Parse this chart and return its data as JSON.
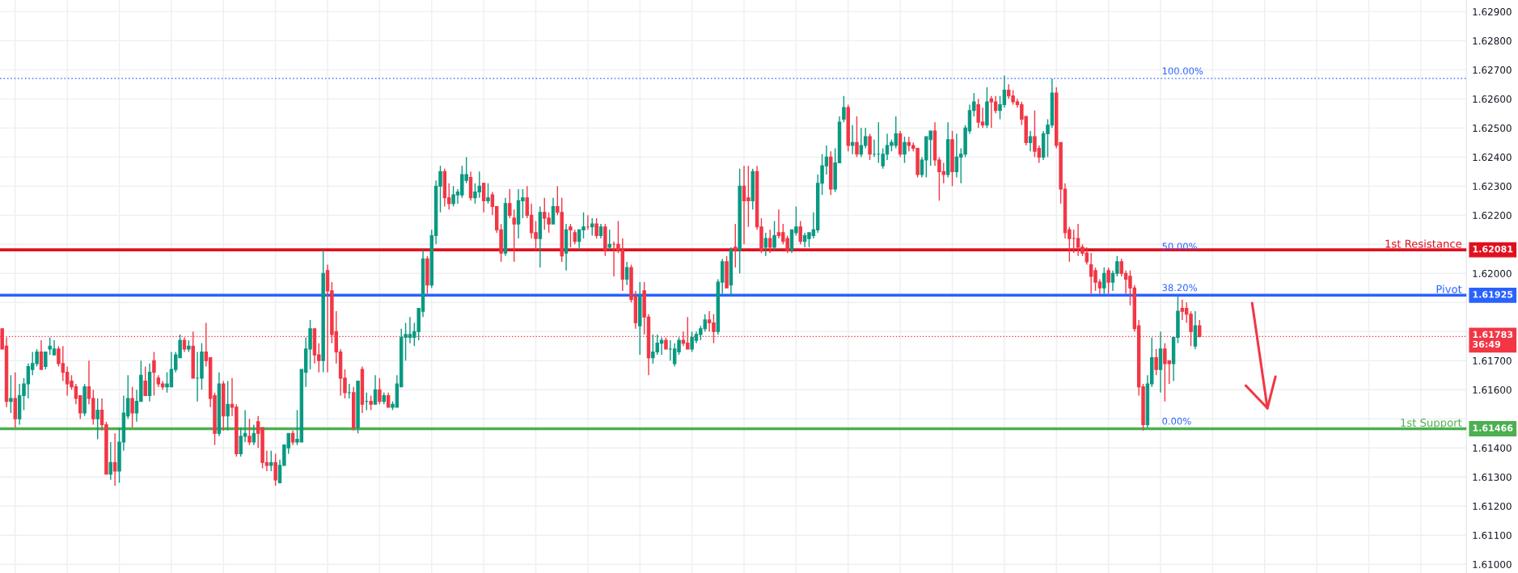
{
  "chart_data": {
    "type": "candlestick",
    "categories": [
      null,
      null,
      null,
      null,
      null,
      null,
      null,
      null,
      null,
      null,
      null,
      null,
      null,
      null,
      null,
      null,
      null,
      null,
      null,
      null,
      null,
      null,
      null,
      null,
      null,
      null,
      null,
      null,
      null,
      null,
      null,
      null,
      null,
      null,
      null,
      null,
      null,
      null,
      null,
      null,
      null,
      null,
      null,
      null,
      null,
      null,
      null,
      null,
      null,
      null,
      null,
      null,
      null,
      null,
      null,
      null,
      null,
      null,
      null,
      null,
      null,
      null,
      null,
      null,
      null,
      null,
      null,
      null,
      null,
      null,
      null,
      null,
      null,
      null,
      null,
      null,
      null,
      null,
      null,
      null,
      null,
      null,
      null,
      null,
      null,
      null,
      null,
      null,
      null,
      null,
      null,
      null,
      null,
      null,
      null,
      null,
      null,
      null,
      null,
      null,
      null,
      null,
      null,
      null,
      null,
      null,
      null,
      null,
      null,
      null,
      null,
      null,
      null,
      null,
      null,
      null,
      null,
      null,
      null,
      null,
      null,
      null,
      null,
      null,
      null,
      null,
      null,
      null,
      null,
      null,
      null,
      null,
      null,
      null,
      null,
      null,
      null,
      null,
      null,
      null,
      null,
      null,
      null,
      null,
      null,
      null,
      null,
      null,
      null,
      null,
      null,
      null,
      null,
      null,
      null,
      null,
      null,
      null,
      null,
      null,
      null,
      null,
      null,
      null,
      null,
      null,
      null,
      null,
      null,
      null,
      null,
      null,
      null,
      null,
      null,
      null,
      null,
      null,
      null,
      null,
      null,
      null,
      null,
      null,
      null,
      null,
      null,
      null,
      null,
      null,
      null,
      null,
      null,
      null,
      null,
      null,
      null,
      null,
      null,
      null,
      null,
      null,
      null,
      null,
      null,
      null,
      null,
      null,
      null,
      null,
      null,
      null,
      null,
      null,
      null,
      null,
      null,
      null,
      null,
      null,
      null,
      null,
      null,
      null,
      null,
      null,
      null,
      null,
      null,
      null,
      null,
      null,
      null,
      null,
      null,
      null,
      null,
      null,
      null,
      null,
      null,
      null,
      null,
      null,
      null,
      null,
      null,
      null,
      null,
      null,
      null,
      null,
      null,
      null,
      null,
      null,
      null,
      null,
      null,
      null,
      null,
      null,
      null,
      null,
      null,
      null,
      null,
      null,
      null,
      null,
      null,
      null,
      null,
      null,
      null,
      null,
      null,
      null,
      null,
      null,
      null,
      null,
      null,
      null,
      null,
      null,
      null,
      null,
      null,
      null,
      null,
      null,
      null,
      null,
      null,
      null,
      null,
      null,
      null,
      null,
      null,
      null,
      null,
      null,
      null,
      null,
      null,
      null,
      null,
      null,
      null,
      null,
      null,
      null,
      null,
      null,
      null,
      null,
      null,
      null,
      null,
      null,
      null,
      null,
      null,
      null,
      null,
      null,
      null,
      null,
      null,
      null,
      null,
      null,
      null,
      null,
      null,
      null
    ],
    "ohlc": [
      [
        1.6181,
        1.6181,
        1.6174,
        1.6174
      ],
      [
        1.6175,
        1.6178,
        1.6154,
        1.6156
      ],
      [
        1.6156,
        1.6165,
        1.6152,
        1.6157
      ],
      [
        1.6157,
        1.6166,
        1.6147,
        1.615
      ],
      [
        1.615,
        1.6162,
        1.6148,
        1.6158
      ],
      [
        1.6158,
        1.6164,
        1.6153,
        1.6162
      ],
      [
        1.6162,
        1.6169,
        1.6157,
        1.6168
      ],
      [
        1.6167,
        1.6173,
        1.6165,
        1.6169
      ],
      [
        1.6169,
        1.6174,
        1.6168,
        1.6173
      ],
      [
        1.6173,
        1.6177,
        1.6167,
        1.6167
      ],
      [
        1.6168,
        1.6173,
        1.6167,
        1.6173
      ],
      [
        1.6174,
        1.6178,
        1.6172,
        1.6175
      ],
      [
        1.6172,
        1.6177,
        1.6172,
        1.6174
      ],
      [
        1.6174,
        1.6175,
        1.6168,
        1.6169
      ],
      [
        1.6169,
        1.6175,
        1.6163,
        1.6166
      ],
      [
        1.6166,
        1.6168,
        1.6158,
        1.6162
      ],
      [
        1.6163,
        1.6165,
        1.616,
        1.6161
      ],
      [
        1.6161,
        1.6162,
        1.6155,
        1.6157
      ],
      [
        1.6158,
        1.6158,
        1.615,
        1.6152
      ],
      [
        1.6152,
        1.6162,
        1.6151,
        1.6161
      ],
      [
        1.6161,
        1.617,
        1.6155,
        1.6157
      ],
      [
        1.6157,
        1.616,
        1.6148,
        1.615
      ],
      [
        1.615,
        1.6157,
        1.6143,
        1.6153
      ],
      [
        1.6153,
        1.6157,
        1.6146,
        1.6148
      ],
      [
        1.6148,
        1.6149,
        1.6131,
        1.6131
      ],
      [
        1.6131,
        1.6142,
        1.6129,
        1.6135
      ],
      [
        1.6135,
        1.6145,
        1.6127,
        1.6132
      ],
      [
        1.6132,
        1.6147,
        1.6128,
        1.6142
      ],
      [
        1.6142,
        1.6158,
        1.6139,
        1.6152
      ],
      [
        1.6151,
        1.6165,
        1.615,
        1.6157
      ],
      [
        1.6157,
        1.6161,
        1.6147,
        1.6152
      ],
      [
        1.6152,
        1.616,
        1.6149,
        1.6156
      ],
      [
        1.6156,
        1.617,
        1.6156,
        1.6165
      ],
      [
        1.6163,
        1.6168,
        1.6158,
        1.6158
      ],
      [
        1.6158,
        1.6169,
        1.6156,
        1.6166
      ],
      [
        1.617,
        1.6173,
        1.6158,
        1.6166
      ],
      [
        1.6164,
        1.6165,
        1.6161,
        1.6162
      ],
      [
        1.6162,
        1.6163,
        1.616,
        1.6161
      ],
      [
        1.6161,
        1.6166,
        1.6159,
        1.6162
      ],
      [
        1.6161,
        1.6173,
        1.6161,
        1.6167
      ],
      [
        1.6167,
        1.6173,
        1.6166,
        1.6172
      ],
      [
        1.6171,
        1.6179,
        1.6171,
        1.6177
      ],
      [
        1.6177,
        1.6178,
        1.6173,
        1.6174
      ],
      [
        1.6174,
        1.6177,
        1.6173,
        1.6175
      ],
      [
        1.6175,
        1.618,
        1.6164,
        1.6164
      ],
      [
        1.6164,
        1.6173,
        1.6156,
        1.6164
      ],
      [
        1.6164,
        1.6176,
        1.616,
        1.6173
      ],
      [
        1.6173,
        1.6183,
        1.6168,
        1.617
      ],
      [
        1.6171,
        1.6171,
        1.6154,
        1.6157
      ],
      [
        1.6158,
        1.6159,
        1.6141,
        1.6145
      ],
      [
        1.6145,
        1.6166,
        1.6144,
        1.6162
      ],
      [
        1.6162,
        1.6163,
        1.6146,
        1.6151
      ],
      [
        1.6151,
        1.6163,
        1.6146,
        1.6155
      ],
      [
        1.6155,
        1.6164,
        1.6151,
        1.6154
      ],
      [
        1.6154,
        1.6155,
        1.6137,
        1.6138
      ],
      [
        1.6138,
        1.6147,
        1.6137,
        1.6144
      ],
      [
        1.6144,
        1.6153,
        1.6142,
        1.6145
      ],
      [
        1.6144,
        1.615,
        1.6141,
        1.6142
      ],
      [
        1.6142,
        1.6148,
        1.6141,
        1.6145
      ],
      [
        1.6149,
        1.6151,
        1.614,
        1.6145
      ],
      [
        1.6147,
        1.6147,
        1.6133,
        1.6135
      ],
      [
        1.6135,
        1.6139,
        1.6132,
        1.6134
      ],
      [
        1.6134,
        1.6139,
        1.6132,
        1.6135
      ],
      [
        1.6135,
        1.6138,
        1.6127,
        1.6129
      ],
      [
        1.6128,
        1.6136,
        1.6128,
        1.6134
      ],
      [
        1.6134,
        1.6141,
        1.6134,
        1.6141
      ],
      [
        1.614,
        1.6145,
        1.6138,
        1.6145
      ],
      [
        1.6145,
        1.6146,
        1.6141,
        1.6142
      ],
      [
        1.6142,
        1.6153,
        1.6141,
        1.6143
      ],
      [
        1.6142,
        1.6167,
        1.6142,
        1.6167
      ],
      [
        1.6166,
        1.6178,
        1.6161,
        1.6174
      ],
      [
        1.6174,
        1.6184,
        1.6167,
        1.6181
      ],
      [
        1.6181,
        1.6181,
        1.6169,
        1.6172
      ],
      [
        1.6172,
        1.6176,
        1.6166,
        1.617
      ],
      [
        1.617,
        1.6208,
        1.6166,
        1.62
      ],
      [
        1.6201,
        1.6203,
        1.6166,
        1.6194
      ],
      [
        1.6194,
        1.6197,
        1.6176,
        1.6179
      ],
      [
        1.618,
        1.6187,
        1.6169,
        1.6173
      ],
      [
        1.6173,
        1.6174,
        1.6158,
        1.6164
      ],
      [
        1.6164,
        1.6167,
        1.6157,
        1.6159
      ],
      [
        1.6159,
        1.6162,
        1.6157,
        1.6159
      ],
      [
        1.6159,
        1.6161,
        1.6146,
        1.6147
      ],
      [
        1.6147,
        1.6163,
        1.6145,
        1.6163
      ],
      [
        1.6167,
        1.6168,
        1.6152,
        1.6155
      ],
      [
        1.6156,
        1.6159,
        1.6153,
        1.6156
      ],
      [
        1.6156,
        1.6158,
        1.6153,
        1.6155
      ],
      [
        1.6155,
        1.6165,
        1.6155,
        1.616
      ],
      [
        1.616,
        1.6164,
        1.6155,
        1.6156
      ],
      [
        1.6156,
        1.6159,
        1.6155,
        1.6158
      ],
      [
        1.6158,
        1.6159,
        1.6154,
        1.6154
      ],
      [
        1.6154,
        1.6156,
        1.6153,
        1.6155
      ],
      [
        1.6154,
        1.6165,
        1.6154,
        1.6162
      ],
      [
        1.6161,
        1.6181,
        1.6161,
        1.6178
      ],
      [
        1.6178,
        1.6183,
        1.617,
        1.6179
      ],
      [
        1.6178,
        1.6185,
        1.6176,
        1.6179
      ],
      [
        1.6178,
        1.6183,
        1.6175,
        1.618
      ],
      [
        1.618,
        1.6188,
        1.6177,
        1.6188
      ],
      [
        1.6187,
        1.6208,
        1.6185,
        1.6205
      ],
      [
        1.6205,
        1.6206,
        1.6193,
        1.6196
      ],
      [
        1.6196,
        1.6215,
        1.6195,
        1.6213
      ],
      [
        1.6213,
        1.6232,
        1.621,
        1.623
      ],
      [
        1.623,
        1.6237,
        1.6221,
        1.6235
      ],
      [
        1.6235,
        1.6236,
        1.6223,
        1.6226
      ],
      [
        1.6226,
        1.6231,
        1.6222,
        1.6224
      ],
      [
        1.6224,
        1.623,
        1.6223,
        1.6227
      ],
      [
        1.6227,
        1.6229,
        1.6224,
        1.6228
      ],
      [
        1.6227,
        1.6237,
        1.6226,
        1.6234
      ],
      [
        1.6232,
        1.624,
        1.6231,
        1.6234
      ],
      [
        1.6233,
        1.6235,
        1.6225,
        1.6226
      ],
      [
        1.6226,
        1.6231,
        1.6224,
        1.6228
      ],
      [
        1.6228,
        1.6235,
        1.6226,
        1.623
      ],
      [
        1.6231,
        1.6231,
        1.6221,
        1.6225
      ],
      [
        1.6225,
        1.6231,
        1.6224,
        1.6226
      ],
      [
        1.6227,
        1.6228,
        1.622,
        1.6223
      ],
      [
        1.6223,
        1.6223,
        1.6214,
        1.6215
      ],
      [
        1.6215,
        1.6217,
        1.6204,
        1.6207
      ],
      [
        1.6207,
        1.6226,
        1.6206,
        1.6224
      ],
      [
        1.6224,
        1.6229,
        1.6219,
        1.622
      ],
      [
        1.6219,
        1.6222,
        1.6204,
        1.6217
      ],
      [
        1.6217,
        1.6229,
        1.6212,
        1.6225
      ],
      [
        1.6225,
        1.6229,
        1.6219,
        1.6226
      ],
      [
        1.6226,
        1.623,
        1.6219,
        1.622
      ],
      [
        1.622,
        1.6224,
        1.6212,
        1.6214
      ],
      [
        1.6214,
        1.6218,
        1.6208,
        1.6212
      ],
      [
        1.6212,
        1.6223,
        1.6202,
        1.6221
      ],
      [
        1.6221,
        1.6226,
        1.6215,
        1.6219
      ],
      [
        1.6219,
        1.6221,
        1.6214,
        1.6217
      ],
      [
        1.6217,
        1.6226,
        1.6217,
        1.6223
      ],
      [
        1.6223,
        1.623,
        1.622,
        1.6221
      ],
      [
        1.6221,
        1.6226,
        1.6204,
        1.6206
      ],
      [
        1.6207,
        1.6217,
        1.6201,
        1.6215
      ],
      [
        1.6216,
        1.6217,
        1.6209,
        1.6215
      ],
      [
        1.6214,
        1.6215,
        1.621,
        1.6211
      ],
      [
        1.6211,
        1.6215,
        1.6208,
        1.6215
      ],
      [
        1.6215,
        1.6221,
        1.6212,
        1.6216
      ],
      [
        1.6216,
        1.622,
        1.6215,
        1.6216
      ],
      [
        1.6216,
        1.6219,
        1.6213,
        1.6217
      ],
      [
        1.6217,
        1.6219,
        1.6212,
        1.6213
      ],
      [
        1.6213,
        1.6217,
        1.6212,
        1.6216
      ],
      [
        1.6216,
        1.6217,
        1.6206,
        1.6208
      ],
      [
        1.6209,
        1.6215,
        1.6208,
        1.621
      ],
      [
        1.621,
        1.6211,
        1.6199,
        1.621
      ],
      [
        1.621,
        1.6218,
        1.6207,
        1.6208
      ],
      [
        1.6208,
        1.6212,
        1.6194,
        1.6198
      ],
      [
        1.6198,
        1.6204,
        1.6196,
        1.6202
      ],
      [
        1.6202,
        1.6203,
        1.619,
        1.6191
      ],
      [
        1.6192,
        1.6194,
        1.6181,
        1.6183
      ],
      [
        1.6182,
        1.6197,
        1.6172,
        1.6192
      ],
      [
        1.6194,
        1.6197,
        1.6179,
        1.6185
      ],
      [
        1.6185,
        1.6186,
        1.6165,
        1.6171
      ],
      [
        1.6171,
        1.6179,
        1.6169,
        1.6173
      ],
      [
        1.6173,
        1.6179,
        1.6172,
        1.6176
      ],
      [
        1.6176,
        1.6178,
        1.6172,
        1.6177
      ],
      [
        1.6177,
        1.6178,
        1.6174,
        1.6174
      ],
      [
        1.6174,
        1.6177,
        1.617,
        1.6174
      ],
      [
        1.6169,
        1.6176,
        1.6168,
        1.6174
      ],
      [
        1.6173,
        1.6178,
        1.6172,
        1.6177
      ],
      [
        1.6177,
        1.618,
        1.6175,
        1.6176
      ],
      [
        1.6176,
        1.6185,
        1.6174,
        1.6174
      ],
      [
        1.6174,
        1.618,
        1.6173,
        1.6178
      ],
      [
        1.6177,
        1.618,
        1.6176,
        1.6179
      ],
      [
        1.6179,
        1.6182,
        1.6177,
        1.6181
      ],
      [
        1.6181,
        1.6186,
        1.618,
        1.6184
      ],
      [
        1.6184,
        1.6187,
        1.618,
        1.6183
      ],
      [
        1.6183,
        1.6186,
        1.6176,
        1.618
      ],
      [
        1.618,
        1.6198,
        1.6179,
        1.6197
      ],
      [
        1.6197,
        1.6205,
        1.6193,
        1.6204
      ],
      [
        1.6204,
        1.6206,
        1.6195,
        1.6195
      ],
      [
        1.6196,
        1.6209,
        1.6192,
        1.6208
      ],
      [
        1.6209,
        1.6217,
        1.6202,
        1.6208
      ],
      [
        1.6208,
        1.6236,
        1.62,
        1.623
      ],
      [
        1.623,
        1.6237,
        1.621,
        1.6225
      ],
      [
        1.6226,
        1.6237,
        1.6216,
        1.6225
      ],
      [
        1.6225,
        1.6236,
        1.6222,
        1.6235
      ],
      [
        1.6235,
        1.6237,
        1.6215,
        1.6216
      ],
      [
        1.6216,
        1.6219,
        1.6207,
        1.6208
      ],
      [
        1.6209,
        1.6214,
        1.6206,
        1.6212
      ],
      [
        1.6212,
        1.6215,
        1.6207,
        1.6209
      ],
      [
        1.6209,
        1.6218,
        1.6208,
        1.6213
      ],
      [
        1.6214,
        1.6222,
        1.6212,
        1.6213
      ],
      [
        1.6214,
        1.6217,
        1.621,
        1.6211
      ],
      [
        1.6212,
        1.6213,
        1.6207,
        1.6208
      ],
      [
        1.6208,
        1.6215,
        1.6207,
        1.6215
      ],
      [
        1.6214,
        1.6223,
        1.6213,
        1.6216
      ],
      [
        1.6216,
        1.6218,
        1.621,
        1.6211
      ],
      [
        1.6211,
        1.6214,
        1.6209,
        1.6213
      ],
      [
        1.6212,
        1.6214,
        1.6209,
        1.6214
      ],
      [
        1.6213,
        1.6221,
        1.6212,
        1.6215
      ],
      [
        1.6215,
        1.6234,
        1.6214,
        1.6231
      ],
      [
        1.6231,
        1.6241,
        1.6227,
        1.6237
      ],
      [
        1.6237,
        1.6244,
        1.6234,
        1.624
      ],
      [
        1.624,
        1.6242,
        1.6227,
        1.6229
      ],
      [
        1.6229,
        1.6243,
        1.6228,
        1.6238
      ],
      [
        1.6238,
        1.6254,
        1.6238,
        1.6252
      ],
      [
        1.6253,
        1.6261,
        1.6252,
        1.6257
      ],
      [
        1.6257,
        1.6258,
        1.6242,
        1.6244
      ],
      [
        1.6244,
        1.6251,
        1.6241,
        1.6245
      ],
      [
        1.6245,
        1.6254,
        1.624,
        1.6241
      ],
      [
        1.6241,
        1.625,
        1.624,
        1.6244
      ],
      [
        1.6244,
        1.625,
        1.6243,
        1.6247
      ],
      [
        1.6247,
        1.6248,
        1.6239,
        1.6241
      ],
      [
        1.6241,
        1.6246,
        1.624,
        1.6241
      ],
      [
        1.6241,
        1.6252,
        1.6238,
        1.6241
      ],
      [
        1.6237,
        1.6243,
        1.6236,
        1.6241
      ],
      [
        1.6241,
        1.6248,
        1.6239,
        1.6244
      ],
      [
        1.6244,
        1.6246,
        1.6242,
        1.6245
      ],
      [
        1.6244,
        1.6254,
        1.6243,
        1.6248
      ],
      [
        1.6248,
        1.6249,
        1.624,
        1.6241
      ],
      [
        1.6241,
        1.6247,
        1.6238,
        1.6245
      ],
      [
        1.6245,
        1.6247,
        1.6242,
        1.6244
      ],
      [
        1.6244,
        1.6245,
        1.6242,
        1.6243
      ],
      [
        1.6243,
        1.6243,
        1.6233,
        1.6234
      ],
      [
        1.6234,
        1.624,
        1.6233,
        1.6239
      ],
      [
        1.6239,
        1.6247,
        1.6233,
        1.6247
      ],
      [
        1.6246,
        1.6249,
        1.6237,
        1.6249
      ],
      [
        1.6249,
        1.6252,
        1.6237,
        1.6239
      ],
      [
        1.6239,
        1.624,
        1.6225,
        1.6235
      ],
      [
        1.6235,
        1.6238,
        1.6231,
        1.6234
      ],
      [
        1.6234,
        1.6252,
        1.6233,
        1.6246
      ],
      [
        1.6246,
        1.6249,
        1.623,
        1.6235
      ],
      [
        1.6235,
        1.6248,
        1.6233,
        1.624
      ],
      [
        1.624,
        1.6243,
        1.6231,
        1.6241
      ],
      [
        1.6241,
        1.6251,
        1.624,
        1.625
      ],
      [
        1.6249,
        1.6258,
        1.6248,
        1.6256
      ],
      [
        1.6256,
        1.6262,
        1.6254,
        1.6259
      ],
      [
        1.6258,
        1.626,
        1.625,
        1.6252
      ],
      [
        1.6252,
        1.6257,
        1.625,
        1.6251
      ],
      [
        1.6251,
        1.6264,
        1.625,
        1.6259
      ],
      [
        1.626,
        1.6261,
        1.625,
        1.6259
      ],
      [
        1.6259,
        1.6261,
        1.6255,
        1.6256
      ],
      [
        1.6256,
        1.6261,
        1.6253,
        1.6258
      ],
      [
        1.6258,
        1.6268,
        1.6257,
        1.6263
      ],
      [
        1.6263,
        1.6265,
        1.626,
        1.6261
      ],
      [
        1.6261,
        1.6263,
        1.6258,
        1.6259
      ],
      [
        1.6259,
        1.626,
        1.6257,
        1.6258
      ],
      [
        1.6258,
        1.6259,
        1.6251,
        1.6253
      ],
      [
        1.6254,
        1.6254,
        1.6244,
        1.6245
      ],
      [
        1.6245,
        1.6249,
        1.6242,
        1.6247
      ],
      [
        1.6247,
        1.6256,
        1.624,
        1.6242
      ],
      [
        1.6243,
        1.6244,
        1.6238,
        1.624
      ],
      [
        1.624,
        1.6249,
        1.6239,
        1.6248
      ],
      [
        1.6248,
        1.6253,
        1.624,
        1.6251
      ],
      [
        1.6251,
        1.6267,
        1.625,
        1.6262
      ],
      [
        1.6262,
        1.6264,
        1.6243,
        1.6244
      ],
      [
        1.6245,
        1.6245,
        1.6224,
        1.6229
      ],
      [
        1.6229,
        1.6231,
        1.6212,
        1.6214
      ],
      [
        1.6215,
        1.6216,
        1.6204,
        1.6212
      ],
      [
        1.6212,
        1.6215,
        1.6207,
        1.6212
      ],
      [
        1.6212,
        1.6217,
        1.6206,
        1.6209
      ],
      [
        1.6209,
        1.621,
        1.6206,
        1.6207
      ],
      [
        1.6207,
        1.6209,
        1.6203,
        1.6204
      ],
      [
        1.6203,
        1.6207,
        1.6193,
        1.6199
      ],
      [
        1.6201,
        1.6202,
        1.6194,
        1.6197
      ],
      [
        1.6197,
        1.6198,
        1.6193,
        1.6195
      ],
      [
        1.6195,
        1.6202,
        1.6193,
        1.62
      ],
      [
        1.6201,
        1.6202,
        1.6193,
        1.6197
      ],
      [
        1.6197,
        1.6201,
        1.6194,
        1.62
      ],
      [
        1.62,
        1.6206,
        1.6199,
        1.6204
      ],
      [
        1.6204,
        1.6205,
        1.6199,
        1.62
      ],
      [
        1.62,
        1.6201,
        1.6193,
        1.6198
      ],
      [
        1.6199,
        1.6201,
        1.6189,
        1.6195
      ],
      [
        1.6195,
        1.6196,
        1.618,
        1.6181
      ],
      [
        1.6182,
        1.6184,
        1.6158,
        1.6161
      ],
      [
        1.6161,
        1.6162,
        1.6146,
        1.6148
      ],
      [
        1.6148,
        1.6165,
        1.6147,
        1.6162
      ],
      [
        1.6162,
        1.6178,
        1.6161,
        1.6171
      ],
      [
        1.6171,
        1.6174,
        1.6165,
        1.6167
      ],
      [
        1.6167,
        1.618,
        1.6159,
        1.6174
      ],
      [
        1.6174,
        1.6176,
        1.6156,
        1.6169
      ],
      [
        1.617,
        1.617,
        1.6162,
        1.6169
      ],
      [
        1.6169,
        1.6178,
        1.6163,
        1.6178
      ],
      [
        1.6178,
        1.6192,
        1.6176,
        1.6187
      ],
      [
        1.6188,
        1.6191,
        1.6184,
        1.6187
      ],
      [
        1.6188,
        1.619,
        1.6183,
        1.6186
      ],
      [
        1.6186,
        1.6187,
        1.6175,
        1.618
      ],
      [
        1.6175,
        1.6187,
        1.6174,
        1.6182
      ],
      [
        1.6182,
        1.6184,
        1.6178,
        1.61783
      ],
      null,
      null,
      null,
      null,
      null,
      null,
      null,
      null,
      null,
      null,
      null,
      null,
      null,
      null,
      null,
      null,
      null,
      null,
      null,
      null,
      null,
      null,
      null,
      null,
      null,
      null,
      null,
      null,
      null,
      null,
      null,
      null,
      null,
      null,
      null,
      null,
      null,
      null,
      null,
      null,
      null,
      null,
      null,
      null,
      null,
      null,
      null,
      null,
      null,
      null,
      null,
      null,
      null,
      null,
      null,
      null,
      null,
      null,
      null,
      null,
      null
    ],
    "colors": [
      "#f23645",
      "#f23645",
      "#089981",
      "#f23645",
      "#089981",
      "#089981",
      "#089981",
      "#089981",
      "#089981",
      "#f23645",
      "#089981",
      "#089981",
      "#089981",
      "#f23645",
      "#f23645",
      "#f23645",
      "#f23645",
      "#f23645",
      "#f23645",
      "#089981",
      "#f23645",
      "#f23645",
      "#089981",
      "#f23645",
      "#f23645",
      "#089981",
      "#f23645",
      "#089981",
      "#089981",
      "#089981",
      "#f23645",
      "#089981",
      "#089981",
      "#f23645",
      "#089981",
      "#f23645",
      "#f23645",
      "#f23645",
      "#089981",
      "#089981",
      "#089981",
      "#089981",
      "#f23645",
      "#089981",
      "#f23645",
      "#089981",
      "#089981",
      "#f23645",
      "#f23645",
      "#f23645",
      "#089981",
      "#f23645",
      "#089981",
      "#f23645",
      "#f23645",
      "#089981",
      "#089981",
      "#f23645",
      "#089981",
      "#f23645",
      "#f23645",
      "#f23645",
      "#089981",
      "#f23645",
      "#089981",
      "#089981",
      "#089981",
      "#f23645",
      "#089981",
      "#089981",
      "#089981",
      "#089981",
      "#f23645",
      "#f23645",
      "#089981",
      "#f23645",
      "#f23645",
      "#f23645",
      "#f23645",
      "#f23645",
      "#089981",
      "#f23645",
      "#089981",
      "#f23645",
      "#089981",
      "#f23645",
      "#089981",
      "#f23645",
      "#089981",
      "#f23645",
      "#089981",
      "#089981",
      "#089981",
      "#089981",
      "#089981",
      "#089981",
      "#089981",
      "#089981",
      "#f23645",
      "#089981",
      "#089981",
      "#089981",
      "#f23645",
      "#f23645",
      "#089981",
      "#089981",
      "#089981",
      "#089981",
      "#f23645",
      "#089981",
      "#089981",
      "#f23645",
      "#089981",
      "#f23645",
      "#f23645",
      "#f23645",
      "#089981",
      "#f23645",
      "#f23645",
      "#089981",
      "#089981",
      "#f23645",
      "#f23645",
      "#f23645",
      "#089981",
      "#f23645",
      "#f23645",
      "#089981",
      "#f23645",
      "#f23645",
      "#089981",
      "#f23645",
      "#f23645",
      "#089981",
      "#089981",
      "#f23645",
      "#089981",
      "#f23645",
      "#089981",
      "#f23645",
      "#089981",
      "#f23645",
      "#f23645",
      "#f23645",
      "#089981",
      "#f23645",
      "#f23645",
      "#089981",
      "#f23645",
      "#f23645",
      "#089981",
      "#089981",
      "#089981",
      "#f23645",
      "#089981",
      "#089981",
      "#089981",
      "#f23645",
      "#f23645",
      "#089981",
      "#089981",
      "#089981",
      "#089981",
      "#f23645",
      "#f23645",
      "#089981",
      "#089981",
      "#f23645",
      "#089981",
      "#f23645",
      "#089981",
      "#f23645",
      "#f23645",
      "#089981",
      "#f23645",
      "#f23645",
      "#089981",
      "#f23645",
      "#089981",
      "#f23645",
      "#f23645",
      "#f23645",
      "#089981",
      "#089981",
      "#f23645",
      "#089981",
      "#089981",
      "#089981",
      "#089981",
      "#089981",
      "#089981",
      "#f23645",
      "#089981",
      "#089981",
      "#089981",
      "#f23645",
      "#089981",
      "#f23645",
      "#089981",
      "#089981",
      "#f23645",
      "#089981",
      "#089981",
      "#089981",
      "#089981",
      "#089981",
      "#089981",
      "#f23645",
      "#089981",
      "#f23645",
      "#f23645",
      "#f23645",
      "#089981",
      "#089981",
      "#089981",
      "#f23645",
      "#f23645",
      "#f23645",
      "#089981",
      "#f23645",
      "#089981",
      "#089981",
      "#089981",
      "#089981",
      "#089981",
      "#f23645",
      "#f23645",
      "#089981",
      "#f23645",
      "#f23645",
      "#089981",
      "#089981",
      "#f23645",
      "#f23645",
      "#f23645",
      "#f23645",
      "#f23645",
      "#089981",
      "#f23645",
      "#f23645",
      "#089981",
      "#089981",
      "#089981",
      "#f23645",
      "#f23645",
      "#f23645",
      "#f23645",
      "#f23645",
      "#f23645",
      "#f23645",
      "#f23645",
      "#f23645",
      "#f23645",
      "#f23645",
      "#089981",
      "#f23645",
      "#089981",
      "#089981",
      "#f23645",
      "#f23645",
      "#f23645",
      "#f23645",
      "#f23645",
      "#f23645",
      "#089981",
      "#089981",
      "#f23645",
      "#089981",
      "#f23645",
      "#f23645",
      "#089981",
      "#089981",
      "#f23645",
      "#f23645",
      "#f23645",
      "#089981",
      "#f23645",
      null,
      null,
      null,
      null,
      null,
      null,
      null,
      null,
      null,
      null,
      null,
      null,
      null,
      null,
      null,
      null,
      null,
      null,
      null,
      null,
      null,
      null,
      null,
      null,
      null,
      null,
      null,
      null,
      null,
      null,
      null,
      null,
      null,
      null,
      null,
      null,
      null,
      null,
      null,
      null,
      null,
      null,
      null,
      null,
      null,
      null,
      null,
      null,
      null,
      null,
      null,
      null,
      null,
      null,
      null,
      null,
      null,
      null,
      null,
      null,
      null
    ],
    "ylim": [
      1.6097,
      1.6294
    ],
    "yticks": [
      {
        "value": 1.61,
        "label": "1.61000"
      },
      {
        "value": 1.611,
        "label": "1.61100"
      },
      {
        "value": 1.612,
        "label": "1.61200"
      },
      {
        "value": 1.613,
        "label": "1.61300"
      },
      {
        "value": 1.614,
        "label": "1.61400"
      },
      {
        "value": 1.615,
        "label": null
      },
      {
        "value": 1.616,
        "label": "1.61600"
      },
      {
        "value": 1.617,
        "label": "1.61700"
      },
      {
        "value": 1.618,
        "label": null
      },
      {
        "value": 1.619,
        "label": null
      },
      {
        "value": 1.62,
        "label": "1.62000"
      },
      {
        "value": 1.621,
        "label": null
      },
      {
        "value": 1.622,
        "label": "1.62200"
      },
      {
        "value": 1.623,
        "label": "1.62300"
      },
      {
        "value": 1.624,
        "label": "1.62400"
      },
      {
        "value": 1.625,
        "label": "1.62500"
      },
      {
        "value": 1.626,
        "label": "1.62600"
      },
      {
        "value": 1.627,
        "label": "1.62700"
      },
      {
        "value": 1.628,
        "label": "1.62800"
      },
      {
        "value": 1.629,
        "label": "1.62900"
      }
    ],
    "ref_lines": [
      {
        "axis": "y",
        "value": 1.62081,
        "label": "1.62081",
        "color": "#e0101e",
        "line_style": "solid"
      },
      {
        "axis": "y",
        "value": 1.61925,
        "label": "1.61925",
        "color": "#2962ff",
        "line_style": "solid"
      },
      {
        "axis": "y",
        "value": 1.61466,
        "label": "1.61466",
        "color": "#4caf50",
        "line_style": "solid"
      },
      {
        "axis": "y",
        "value": 1.61783,
        "label": "1.61783",
        "color": "#f23645",
        "line_style": "dotted"
      },
      {
        "axis": "y",
        "value": 1.6267,
        "color": "#2962ff",
        "line_style": "dotted"
      }
    ],
    "annotations": [
      {
        "text": "1st Resistance",
        "y": 1.62081
      },
      {
        "text": "Pivot",
        "y": 1.61925
      },
      {
        "text": "1st Support",
        "y": 1.61466
      },
      {
        "text": "100.00%",
        "y": 1.6267
      },
      {
        "text": "50.00%",
        "y": 1.62067
      },
      {
        "text": "38.20%",
        "y": 1.61925
      },
      {
        "text": "0.00%",
        "y": 1.61466
      },
      "36:49"
    ],
    "grid": true,
    "tick_labels": "y"
  }
}
